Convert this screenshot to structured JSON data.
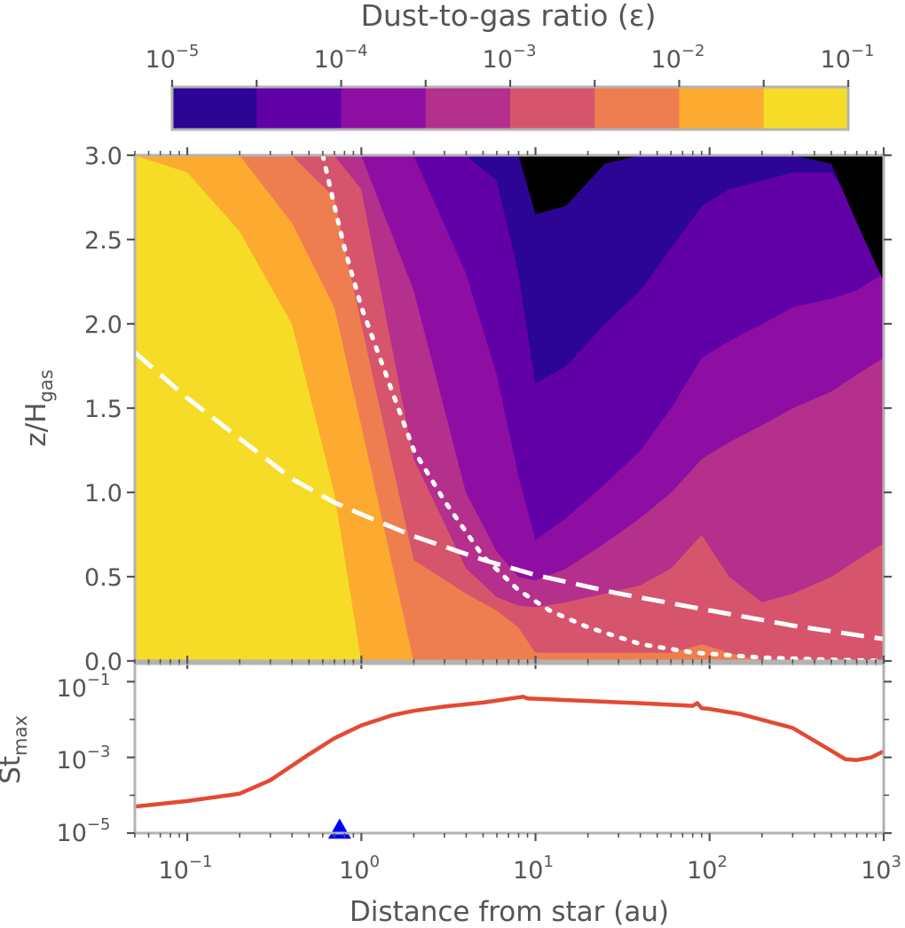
{
  "chart_data": [
    {
      "type": "heatmap",
      "subtype": "filled-contour",
      "colorbar": {
        "title": "Dust-to-gas ratio (ε)",
        "tick_labels": [
          {
            "base": "10",
            "exp": "−5"
          },
          {
            "base": "10",
            "exp": "−4"
          },
          {
            "base": "10",
            "exp": "−3"
          },
          {
            "base": "10",
            "exp": "−2"
          },
          {
            "base": "10",
            "exp": "−1"
          }
        ],
        "levels": [
          1e-05,
          3.16e-05,
          0.0001,
          0.000316,
          0.001,
          0.00316,
          0.01,
          0.0316,
          0.1
        ],
        "colors": [
          "#2c0594",
          "#6200a8",
          "#8e0ea4",
          "#b52f8c",
          "#d6556d",
          "#ee7e4f",
          "#fcab30",
          "#f6dc26"
        ]
      },
      "xlabel": "Distance from star (au)",
      "xscale": "log",
      "xlim": [
        0.05,
        1000
      ],
      "x_tick_labels": [
        {
          "base": "10",
          "exp": "−1"
        },
        {
          "base": "10",
          "exp": "0"
        },
        {
          "base": "10",
          "exp": "1"
        },
        {
          "base": "10",
          "exp": "2"
        },
        {
          "base": "10",
          "exp": "3"
        }
      ],
      "ylabel": {
        "main": "z/H",
        "sub": "gas"
      },
      "ylim": [
        0,
        3
      ],
      "y_ticks": [
        "0.0",
        "0.5",
        "1.0",
        "1.5",
        "2.0",
        "2.5",
        "3.0"
      ],
      "contour_x_au": [
        0.05,
        0.1,
        0.2,
        0.4,
        0.7,
        1,
        2,
        4,
        6,
        8,
        10,
        15,
        25,
        40,
        60,
        90,
        130,
        200,
        300,
        500,
        700,
        1000
      ],
      "contour_boundaries_z": [
        [
          3.0,
          2.9,
          2.55,
          2.0,
          1.0,
          0.0,
          0.0,
          0.0,
          0.0,
          0.0,
          0.0,
          0.0,
          0.0,
          0.0,
          0.0,
          0.0,
          0.0,
          0.0,
          0.0,
          0.0,
          0.0,
          0.0
        ],
        [
          3.0,
          3.0,
          3.0,
          2.6,
          2.1,
          1.4,
          0.0,
          0.0,
          0.0,
          0.0,
          0.0,
          0.0,
          0.0,
          0.0,
          0.0,
          0.0,
          0.0,
          0.0,
          0.0,
          0.0,
          0.0,
          0.0
        ],
        [
          3.0,
          3.0,
          3.0,
          3.0,
          2.75,
          2.0,
          0.6,
          0.4,
          0.3,
          0.2,
          0.05,
          0.05,
          0.05,
          0.05,
          0.05,
          0.1,
          0.05,
          0.0,
          0.0,
          0.0,
          0.0,
          0.0
        ],
        [
          3.0,
          3.0,
          3.0,
          3.0,
          3.0,
          2.8,
          1.2,
          0.55,
          0.38,
          0.33,
          0.32,
          0.35,
          0.4,
          0.45,
          0.55,
          0.75,
          0.5,
          0.35,
          0.4,
          0.5,
          0.6,
          0.7
        ],
        [
          3.0,
          3.0,
          3.0,
          3.0,
          3.0,
          3.0,
          2.2,
          1.0,
          0.65,
          0.5,
          0.48,
          0.55,
          0.7,
          0.85,
          1.0,
          1.2,
          1.3,
          1.4,
          1.5,
          1.6,
          1.7,
          1.8
        ],
        [
          3.0,
          3.0,
          3.0,
          3.0,
          3.0,
          3.0,
          3.0,
          2.3,
          1.7,
          1.1,
          0.72,
          0.85,
          1.05,
          1.25,
          1.5,
          1.8,
          1.9,
          2.0,
          2.1,
          2.15,
          2.2,
          2.3
        ],
        [
          3.0,
          3.0,
          3.0,
          3.0,
          3.0,
          3.0,
          3.0,
          3.0,
          2.85,
          2.3,
          1.65,
          1.75,
          2.0,
          2.2,
          2.45,
          2.7,
          2.8,
          2.85,
          2.9,
          2.9,
          2.7,
          2.5
        ],
        [
          3.0,
          3.0,
          3.0,
          3.0,
          3.0,
          3.0,
          3.0,
          3.0,
          3.0,
          3.0,
          2.65,
          2.7,
          2.95,
          3.0,
          3.0,
          3.0,
          3.0,
          3.0,
          3.0,
          2.95,
          2.6,
          2.25
        ]
      ],
      "lines": [
        {
          "style": "dashed",
          "color": "#ffffff",
          "x": [
            0.05,
            0.1,
            0.2,
            0.4,
            0.7,
            1,
            2,
            5,
            10,
            30,
            100,
            300,
            1000
          ],
          "z": [
            1.83,
            1.56,
            1.32,
            1.08,
            0.94,
            0.87,
            0.74,
            0.6,
            0.51,
            0.4,
            0.3,
            0.21,
            0.13
          ]
        },
        {
          "style": "dotted",
          "color": "#ffffff",
          "x": [
            0.6,
            0.7,
            0.8,
            1,
            1.5,
            2,
            3,
            5,
            8,
            12,
            20,
            40,
            80,
            200,
            400,
            1000
          ],
          "z": [
            3.0,
            2.7,
            2.45,
            2.1,
            1.6,
            1.25,
            0.95,
            0.62,
            0.42,
            0.3,
            0.2,
            0.1,
            0.05,
            0.02,
            0.01,
            0.0
          ]
        }
      ]
    },
    {
      "type": "line",
      "ylabel": {
        "main": "St",
        "sub": "max"
      },
      "yscale": "log",
      "ylim": [
        1e-05,
        0.3
      ],
      "y_tick_labels": [
        {
          "base": "10",
          "exp": "−5"
        },
        {
          "base": "10",
          "exp": "−3"
        },
        {
          "base": "10",
          "exp": "−1"
        }
      ],
      "series": [
        {
          "color": "#e34a33",
          "x": [
            0.05,
            0.1,
            0.2,
            0.3,
            0.5,
            0.7,
            1,
            1.5,
            2,
            3,
            5,
            8.5,
            9,
            12,
            20,
            40,
            80,
            85,
            90,
            100,
            150,
            300,
            500,
            600,
            700,
            850,
            1000
          ],
          "y": [
            5e-05,
            7e-05,
            0.00011,
            0.00025,
            0.0012,
            0.0032,
            0.007,
            0.013,
            0.017,
            0.022,
            0.028,
            0.04,
            0.036,
            0.034,
            0.031,
            0.027,
            0.023,
            0.027,
            0.02,
            0.019,
            0.014,
            0.006,
            0.0015,
            0.0009,
            0.00085,
            0.001,
            0.00145
          ]
        }
      ],
      "markers": [
        {
          "shape": "triangle",
          "color": "#0000ff",
          "x": 0.75,
          "y": 1.2e-05
        }
      ]
    }
  ]
}
